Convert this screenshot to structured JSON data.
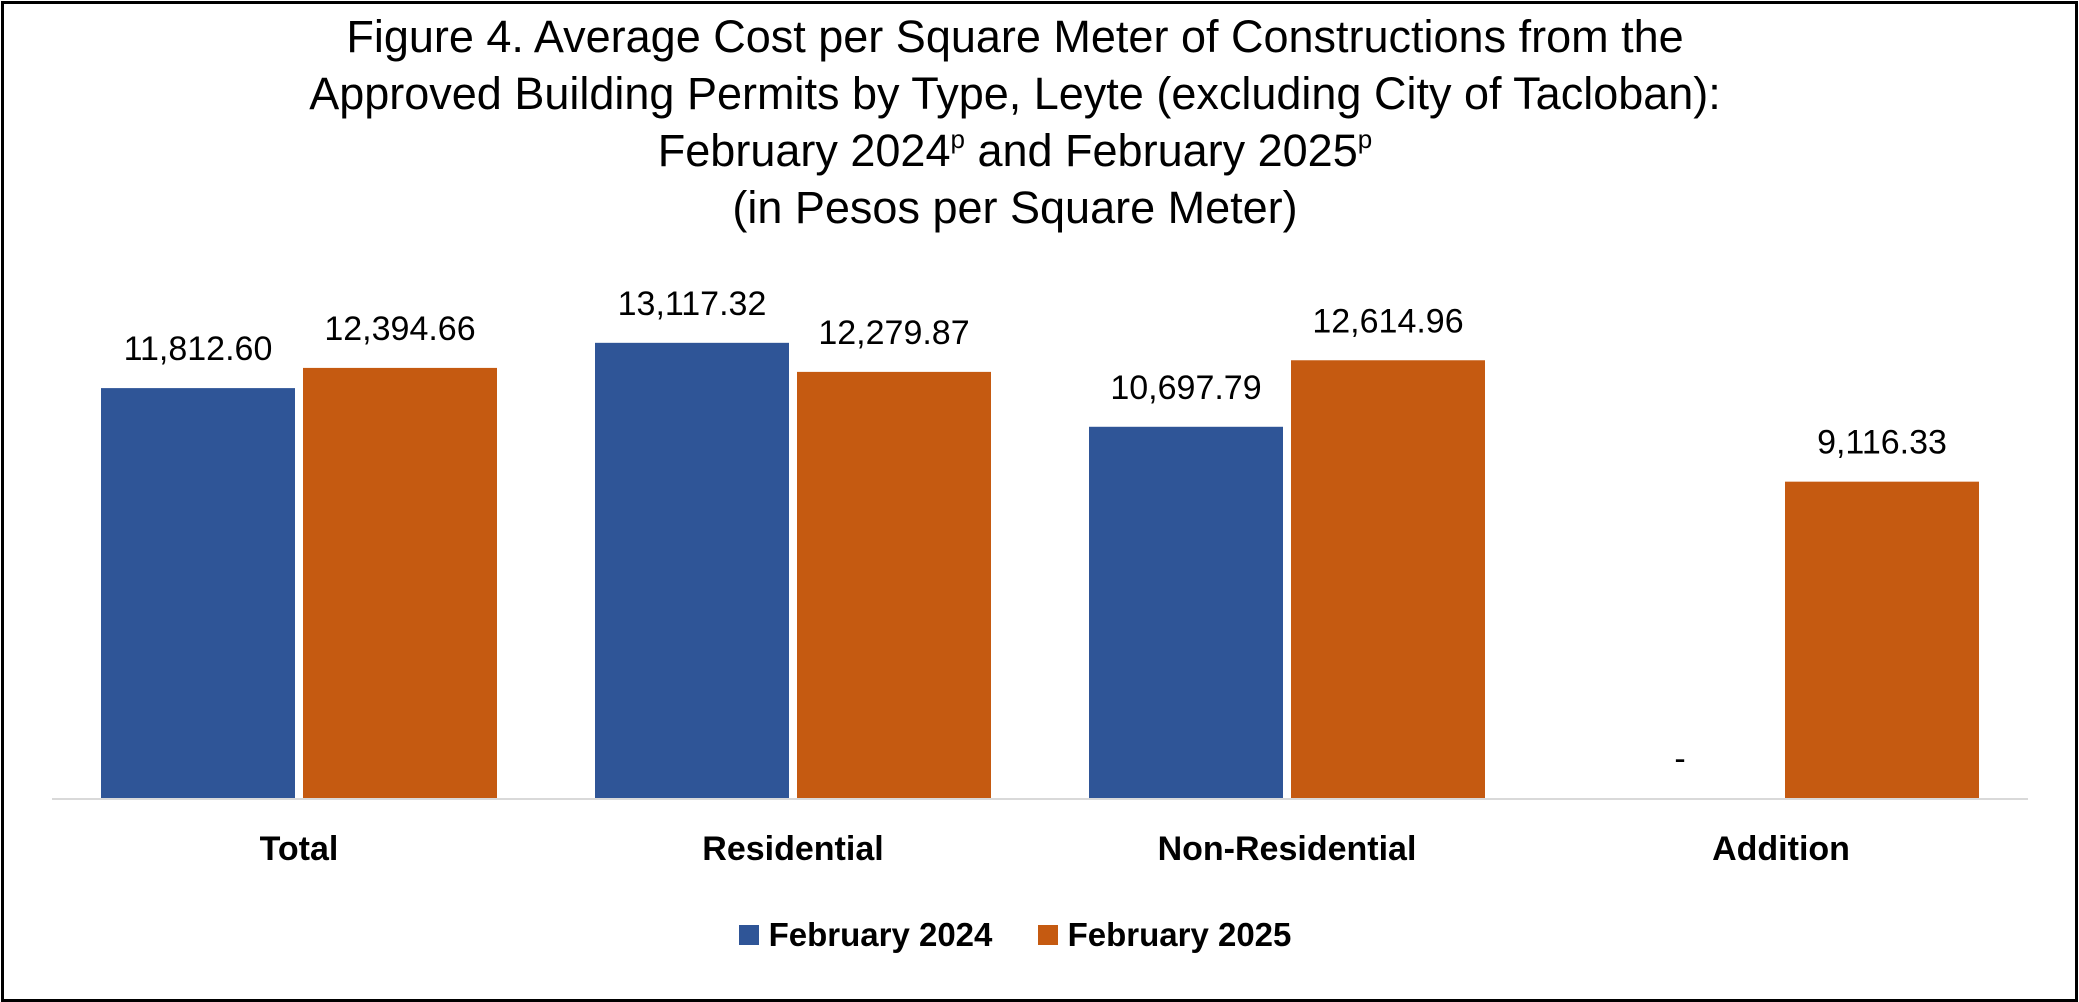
{
  "title": {
    "line1": "Figure 4. Average Cost per Square Meter of Constructions from the",
    "line2": "Approved Building Permits by Type, Leyte (excluding City of Tacloban):",
    "line3_a": "February 2024",
    "line3_sup1": "p",
    "line3_b": " and February 2025",
    "line3_sup2": "p",
    "line4": "(in Pesos per Square Meter)"
  },
  "chart_data": {
    "type": "bar",
    "title": "Figure 4. Average Cost per Square Meter of Constructions from the Approved Building Permits by Type, Leyte (excluding City of Tacloban): February 2024p and February 2025p (in Pesos per Square Meter)",
    "categories": [
      "Total",
      "Residential",
      "Non-Residential",
      "Addition"
    ],
    "series": [
      {
        "name": "February 2024",
        "color": "#2F5597",
        "values": [
          11812.6,
          13117.32,
          10697.79,
          null
        ],
        "labels": [
          "11,812.60",
          "13,117.32",
          "10,697.79",
          "-"
        ]
      },
      {
        "name": "February 2025",
        "color": "#C55A11",
        "values": [
          12394.66,
          12279.87,
          12614.96,
          9116.33
        ],
        "labels": [
          "12,394.66",
          "12,279.87",
          "12,614.96",
          "9,116.33"
        ]
      }
    ],
    "xlabel": "",
    "ylabel": "",
    "ylim": [
      0,
      14000
    ],
    "grid": false,
    "legend_position": "bottom"
  }
}
